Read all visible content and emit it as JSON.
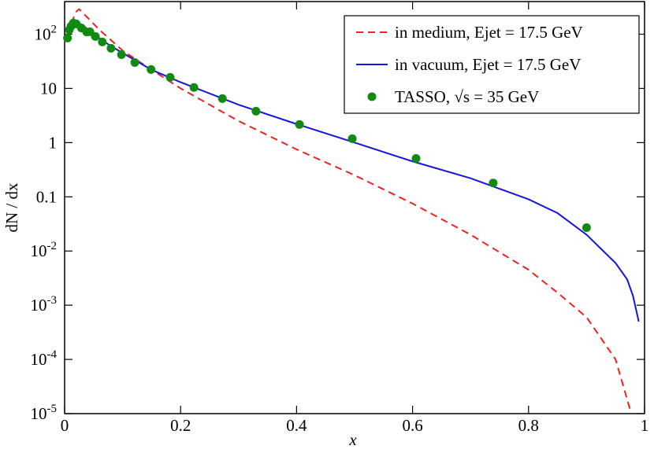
{
  "chart_data": {
    "type": "line",
    "x_label": "x",
    "y_label": "dN / dx",
    "log_y": true,
    "legend": "top-right",
    "xlim": [
      0,
      1
    ],
    "xticks": [
      0,
      0.2,
      0.4,
      0.6,
      0.8,
      1
    ],
    "ylim": [
      1e-05,
      400
    ],
    "yticks": [
      {
        "value": 1e-05,
        "label": "10",
        "sup": "-5"
      },
      {
        "value": 0.0001,
        "label": "10",
        "sup": "-4"
      },
      {
        "value": 0.001,
        "label": "10",
        "sup": "-3"
      },
      {
        "value": 0.01,
        "label": "10",
        "sup": "-2"
      },
      {
        "value": 0.1,
        "label": "0.1"
      },
      1,
      10,
      {
        "value": 100,
        "label": "10",
        "sup": "2"
      }
    ],
    "series": [
      {
        "name": "in medium, Ejet = 17.5 GeV",
        "type": "line",
        "dash": "dashed",
        "color": "#ee2222",
        "x": [
          0.005,
          0.01,
          0.02,
          0.025,
          0.04,
          0.06,
          0.1,
          0.15,
          0.2,
          0.3,
          0.4,
          0.5,
          0.6,
          0.7,
          0.8,
          0.85,
          0.9,
          0.95,
          0.975
        ],
        "values": [
          100,
          150,
          260,
          290,
          200,
          120,
          50,
          22,
          10,
          2.5,
          0.75,
          0.25,
          0.075,
          0.02,
          0.0045,
          0.0017,
          0.0006,
          0.0001,
          1.2e-05
        ]
      },
      {
        "name": "in vacuum, Ejet = 17.5 GeV",
        "type": "line",
        "dash": "solid",
        "color": "#1515dd",
        "x": [
          0.005,
          0.01,
          0.02,
          0.03,
          0.05,
          0.08,
          0.1,
          0.15,
          0.2,
          0.3,
          0.4,
          0.5,
          0.6,
          0.7,
          0.8,
          0.85,
          0.9,
          0.95,
          0.97,
          0.98,
          0.99
        ],
        "values": [
          90,
          120,
          165,
          150,
          100,
          60,
          45,
          22,
          13,
          5,
          2.2,
          1.0,
          0.45,
          0.22,
          0.09,
          0.05,
          0.02,
          0.006,
          0.003,
          0.0015,
          0.0005
        ]
      },
      {
        "name": "TASSO, √s = 35 GeV",
        "type": "scatter",
        "color": "#128a12",
        "x": [
          0.005,
          0.008,
          0.011,
          0.015,
          0.02,
          0.029,
          0.038,
          0.0435,
          0.053,
          0.065,
          0.08,
          0.098,
          0.121,
          0.149,
          0.182,
          0.223,
          0.272,
          0.33,
          0.405,
          0.496,
          0.606,
          0.739,
          0.9
        ],
        "values": [
          85,
          120,
          140,
          160,
          155,
          130,
          110,
          111,
          91,
          72,
          55,
          42,
          30,
          22.3,
          16,
          10.4,
          6.5,
          3.8,
          2.16,
          1.18,
          0.51,
          0.18,
          0.027
        ]
      }
    ]
  }
}
